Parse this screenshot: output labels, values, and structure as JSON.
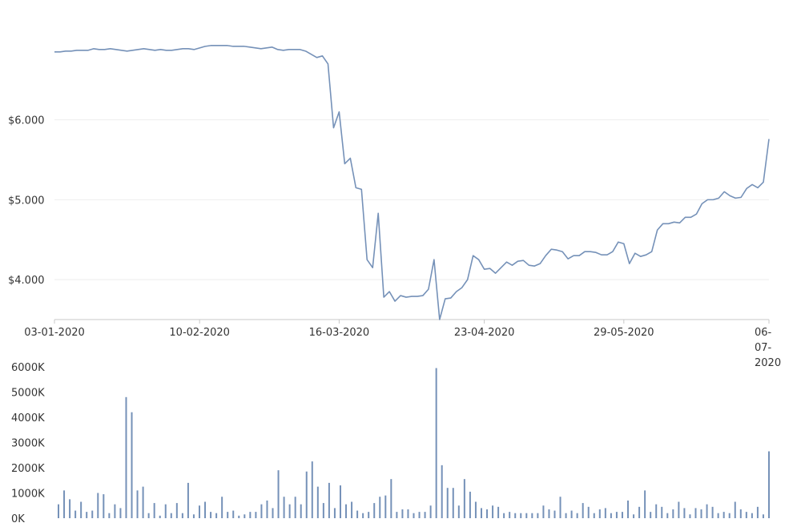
{
  "chart_data": [
    {
      "type": "line",
      "title": "",
      "xlabel": "",
      "ylabel": "",
      "ylim": [
        3.5,
        7.5
      ],
      "y_ticks": [
        {
          "value": 4.0,
          "label": "$4.000"
        },
        {
          "value": 5.0,
          "label": "$5.000"
        },
        {
          "value": 6.0,
          "label": "$6.000"
        }
      ],
      "x_ticks": [
        {
          "index": 0,
          "label": "03-01-2020"
        },
        {
          "index": 26,
          "label": "10-02-2020"
        },
        {
          "index": 51,
          "label": "16-03-2020"
        },
        {
          "index": 77,
          "label": "23-04-2020"
        },
        {
          "index": 102,
          "label": "29-05-2020"
        },
        {
          "index": 128,
          "label": "06-07-2020"
        }
      ],
      "grid": true,
      "series": [
        {
          "color": "#7591b8",
          "values": [
            6.85,
            6.85,
            6.86,
            6.86,
            6.87,
            6.87,
            6.87,
            6.89,
            6.88,
            6.88,
            6.89,
            6.88,
            6.87,
            6.86,
            6.87,
            6.88,
            6.89,
            6.88,
            6.87,
            6.88,
            6.87,
            6.87,
            6.88,
            6.89,
            6.89,
            6.88,
            6.9,
            6.92,
            6.93,
            6.93,
            6.93,
            6.93,
            6.92,
            6.92,
            6.92,
            6.91,
            6.9,
            6.89,
            6.9,
            6.91,
            6.88,
            6.87,
            6.88,
            6.88,
            6.88,
            6.86,
            6.82,
            6.78,
            6.8,
            6.7,
            5.9,
            6.1,
            5.45,
            5.52,
            5.15,
            5.13,
            4.25,
            4.15,
            4.83,
            3.78,
            3.85,
            3.73,
            3.8,
            3.78,
            3.79,
            3.79,
            3.8,
            3.88,
            4.25,
            3.5,
            3.76,
            3.77,
            3.85,
            3.9,
            4.0,
            4.3,
            4.25,
            4.13,
            4.14,
            4.08,
            4.15,
            4.22,
            4.18,
            4.23,
            4.24,
            4.18,
            4.17,
            4.2,
            4.3,
            4.38,
            4.37,
            4.35,
            4.26,
            4.3,
            4.3,
            4.35,
            4.35,
            4.34,
            4.31,
            4.31,
            4.35,
            4.47,
            4.45,
            4.2,
            4.33,
            4.29,
            4.31,
            4.35,
            4.62,
            4.7,
            4.7,
            4.72,
            4.71,
            4.78,
            4.78,
            4.82,
            4.95,
            5.0,
            5.0,
            5.02,
            5.1,
            5.05,
            5.02,
            5.03,
            5.14,
            5.19,
            5.15,
            5.22,
            5.76
          ]
        }
      ]
    },
    {
      "type": "bar",
      "title": "",
      "xlabel": "",
      "ylabel": "",
      "ylim": [
        0,
        6000
      ],
      "y_ticks": [
        {
          "value": 0,
          "label": "0K"
        },
        {
          "value": 1000,
          "label": "1000K"
        },
        {
          "value": 2000,
          "label": "2000K"
        },
        {
          "value": 3000,
          "label": "3000K"
        },
        {
          "value": 4000,
          "label": "4000K"
        },
        {
          "value": 5000,
          "label": "5000K"
        },
        {
          "value": 6000,
          "label": "6000K"
        }
      ],
      "grid": false,
      "series": [
        {
          "color": "#7591b8",
          "values": [
            550,
            1100,
            750,
            300,
            650,
            250,
            300,
            1000,
            950,
            200,
            550,
            400,
            4800,
            4200,
            1100,
            1250,
            200,
            600,
            100,
            550,
            200,
            600,
            200,
            1400,
            150,
            500,
            650,
            250,
            200,
            850,
            250,
            300,
            100,
            150,
            250,
            250,
            550,
            700,
            400,
            1900,
            850,
            550,
            850,
            550,
            1850,
            2250,
            1250,
            600,
            1400,
            400,
            1300,
            550,
            650,
            300,
            200,
            250,
            600,
            850,
            900,
            1550,
            250,
            350,
            350,
            200,
            250,
            250,
            500,
            5950,
            2100,
            1200,
            1200,
            500,
            1550,
            1050,
            650,
            400,
            350,
            500,
            450,
            200,
            250,
            200,
            200,
            200,
            200,
            200,
            500,
            350,
            300,
            850,
            200,
            300,
            200,
            600,
            450,
            200,
            350,
            400,
            200,
            250,
            250,
            700,
            150,
            450,
            1100,
            250,
            550,
            450,
            200,
            350,
            650,
            400,
            150,
            400,
            350,
            550,
            450,
            200,
            250,
            200,
            650,
            350,
            250,
            200,
            450,
            150,
            2650
          ]
        }
      ]
    }
  ]
}
